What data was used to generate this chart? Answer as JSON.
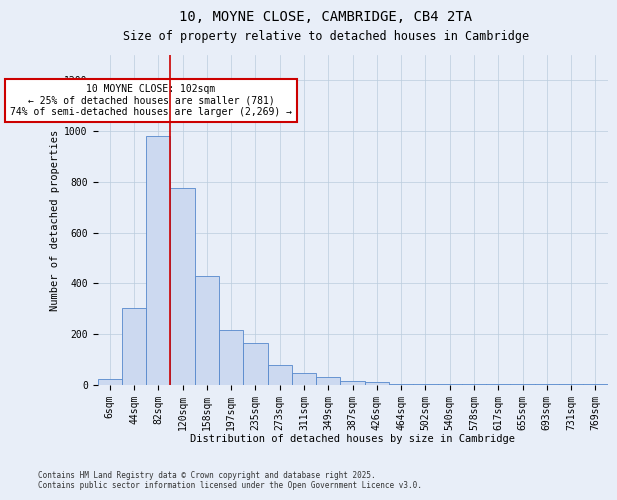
{
  "title": "10, MOYNE CLOSE, CAMBRIDGE, CB4 2TA",
  "subtitle": "Size of property relative to detached houses in Cambridge",
  "xlabel": "Distribution of detached houses by size in Cambridge",
  "ylabel": "Number of detached properties",
  "bins": [
    "6sqm",
    "44sqm",
    "82sqm",
    "120sqm",
    "158sqm",
    "197sqm",
    "235sqm",
    "273sqm",
    "311sqm",
    "349sqm",
    "387sqm",
    "426sqm",
    "464sqm",
    "502sqm",
    "540sqm",
    "578sqm",
    "617sqm",
    "655sqm",
    "693sqm",
    "731sqm",
    "769sqm"
  ],
  "bar_heights": [
    25,
    305,
    980,
    775,
    430,
    215,
    165,
    80,
    48,
    30,
    15,
    12,
    5,
    5,
    5,
    5,
    5,
    5,
    5,
    5,
    5
  ],
  "bar_color": "#ccd9f0",
  "bar_edge_color": "#5588cc",
  "grid_color": "#bbccdd",
  "vline_color": "#cc0000",
  "vline_pos": 3.0,
  "annotation_text": "10 MOYNE CLOSE: 102sqm\n← 25% of detached houses are smaller (781)\n74% of semi-detached houses are larger (2,269) →",
  "ylim": [
    0,
    1300
  ],
  "yticks": [
    0,
    200,
    400,
    600,
    800,
    1000,
    1200
  ],
  "footer_line1": "Contains HM Land Registry data © Crown copyright and database right 2025.",
  "footer_line2": "Contains public sector information licensed under the Open Government Licence v3.0.",
  "bg_color": "#e8eef8",
  "plot_bg_color": "#e8eef8",
  "title_fontsize": 10,
  "subtitle_fontsize": 8.5,
  "axis_label_fontsize": 7.5,
  "tick_fontsize": 7,
  "annotation_fontsize": 7,
  "footer_fontsize": 5.5
}
